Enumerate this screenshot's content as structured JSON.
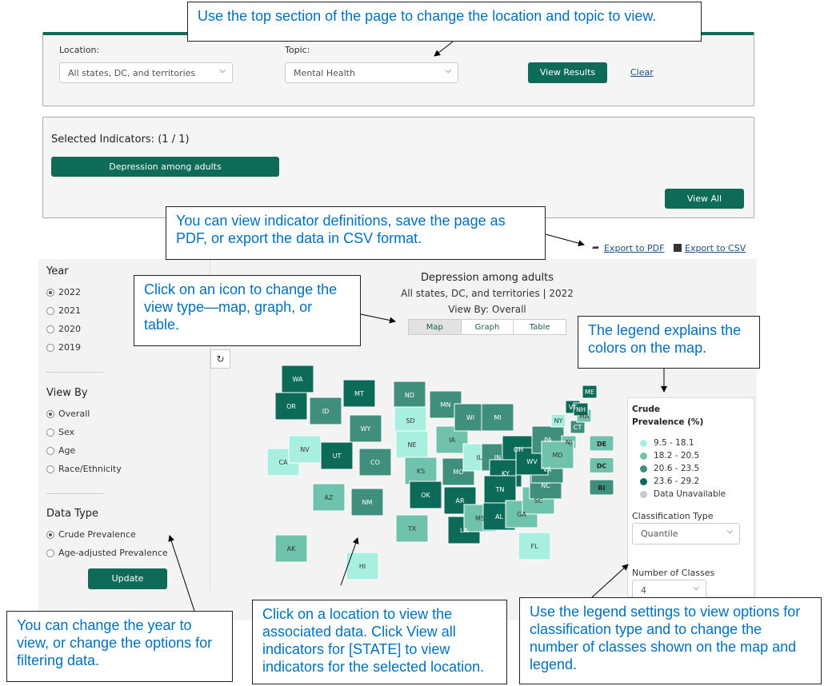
{
  "callouts": [
    "Use the top section of the page to change the location and topic to view.",
    "You can view indicator definitions, save the page as PDF, or export the data in CSV format.",
    "Click on an icon to change the view type—map, graph, or table.",
    "The legend explains the colors on the map.",
    "You can change the year to view, or change the options for filtering data.",
    "Click on a location to view the associated data. Click View all indicators for [STATE] to view indicators for the selected location.",
    "Use the legend settings to view options for classification type and to change the number of classes shown on the map and legend."
  ],
  "filters": {
    "location_label": "Location:",
    "location_value": "All states, DC, and territories",
    "topic_label": "Topic:",
    "topic_value": "Mental Health",
    "view_results": "View Results",
    "clear": "Clear"
  },
  "indicators": {
    "title": "Selected Indicators: (1 / 1)",
    "selected": [
      "Depression among adults"
    ],
    "view_all": "View All"
  },
  "export": [
    "Export to PDF",
    "Export to CSV"
  ],
  "sidebar": {
    "sections": [
      {
        "title": "Year",
        "options": [
          "2022",
          "2021",
          "2020",
          "2019"
        ],
        "selected": 0
      },
      {
        "title": "View By",
        "options": [
          "Overall",
          "Sex",
          "Age",
          "Race/Ethnicity"
        ],
        "selected": 0
      },
      {
        "title": "Data Type",
        "options": [
          "Crude Prevalence",
          "Age-adjusted Prevalence"
        ],
        "selected": 0
      }
    ],
    "update": "Update"
  },
  "map": {
    "title": "Depression among adults",
    "subtitle": "All states, DC, and territories | 2022",
    "view_by": "View By: Overall",
    "tabs": [
      "Map",
      "Graph",
      "Table"
    ],
    "active_tab": 0,
    "states": [
      {
        "label": "WA",
        "color": "#0c6b58"
      },
      {
        "label": "OR",
        "color": "#0c6b58"
      },
      {
        "label": "CA",
        "color": "#a9efe0"
      },
      {
        "label": "NV",
        "color": "#a9efe0"
      },
      {
        "label": "ID",
        "color": "#3f8f7c"
      },
      {
        "label": "MT",
        "color": "#0c6b58"
      },
      {
        "label": "WY",
        "color": "#3f8f7c"
      },
      {
        "label": "UT",
        "color": "#0c6b58"
      },
      {
        "label": "AZ",
        "color": "#6fc3ad"
      },
      {
        "label": "CO",
        "color": "#3f8f7c"
      },
      {
        "label": "NM",
        "color": "#3f8f7c"
      },
      {
        "label": "ND",
        "color": "#3f8f7c"
      },
      {
        "label": "SD",
        "color": "#a9efe0"
      },
      {
        "label": "NE",
        "color": "#a9efe0"
      },
      {
        "label": "KS",
        "color": "#6fc3ad"
      },
      {
        "label": "OK",
        "color": "#0c6b58"
      },
      {
        "label": "TX",
        "color": "#6fc3ad"
      },
      {
        "label": "MN",
        "color": "#3f8f7c"
      },
      {
        "label": "IA",
        "color": "#6fc3ad"
      },
      {
        "label": "MO",
        "color": "#3f8f7c"
      },
      {
        "label": "AR",
        "color": "#0c6b58"
      },
      {
        "label": "LA",
        "color": "#0c6b58"
      },
      {
        "label": "WI",
        "color": "#3f8f7c"
      },
      {
        "label": "IL",
        "color": "#a9efe0"
      },
      {
        "label": "MI",
        "color": "#3f8f7c"
      },
      {
        "label": "IN",
        "color": "#3f8f7c"
      },
      {
        "label": "OH",
        "color": "#0c6b58"
      },
      {
        "label": "KY",
        "color": "#0c6b58"
      },
      {
        "label": "TN",
        "color": "#0c6b58"
      },
      {
        "label": "MS",
        "color": "#6fc3ad"
      },
      {
        "label": "AL",
        "color": "#0c6b58"
      },
      {
        "label": "GA",
        "color": "#6fc3ad"
      },
      {
        "label": "FL",
        "color": "#a9efe0"
      },
      {
        "label": "SC",
        "color": "#6fc3ad"
      },
      {
        "label": "NC",
        "color": "#3f8f7c"
      },
      {
        "label": "VA",
        "color": "#3f8f7c"
      },
      {
        "label": "WV",
        "color": "#0c6b58"
      },
      {
        "label": "PA",
        "color": "#3f8f7c"
      },
      {
        "label": "NY",
        "color": "#a9efe0"
      },
      {
        "label": "NJ",
        "color": "#6fc3ad"
      },
      {
        "label": "MD",
        "color": "#6fc3ad"
      },
      {
        "label": "CT",
        "color": "#3f8f7c"
      },
      {
        "label": "MA",
        "color": "#6fc3ad"
      },
      {
        "label": "VT",
        "color": "#0c6b58"
      },
      {
        "label": "NH",
        "color": "#0c6b58"
      },
      {
        "label": "ME",
        "color": "#0c6b58"
      },
      {
        "label": "AK",
        "color": "#6fc3ad"
      },
      {
        "label": "HI",
        "color": "#a9efe0"
      }
    ],
    "small_states": [
      {
        "label": "DE",
        "color": "#6fc3ad"
      },
      {
        "label": "DC",
        "color": "#6fc3ad"
      },
      {
        "label": "RI",
        "color": "#3f8f7c"
      }
    ]
  },
  "legend": {
    "title": "Crude Prevalence (%)",
    "items": [
      {
        "label": "9.5 - 18.1",
        "color": "#a9efe0"
      },
      {
        "label": "18.2 - 20.5",
        "color": "#6fc3ad"
      },
      {
        "label": "20.6 - 23.5",
        "color": "#3f8f7c"
      },
      {
        "label": "23.6 - 29.2",
        "color": "#0c6b58"
      },
      {
        "label": "Data Unavailable",
        "color": "#c8c8c8"
      }
    ],
    "classification_label": "Classification Type",
    "classification_value": "Quantile",
    "classes_label": "Number of Classes",
    "classes_value": "4"
  }
}
